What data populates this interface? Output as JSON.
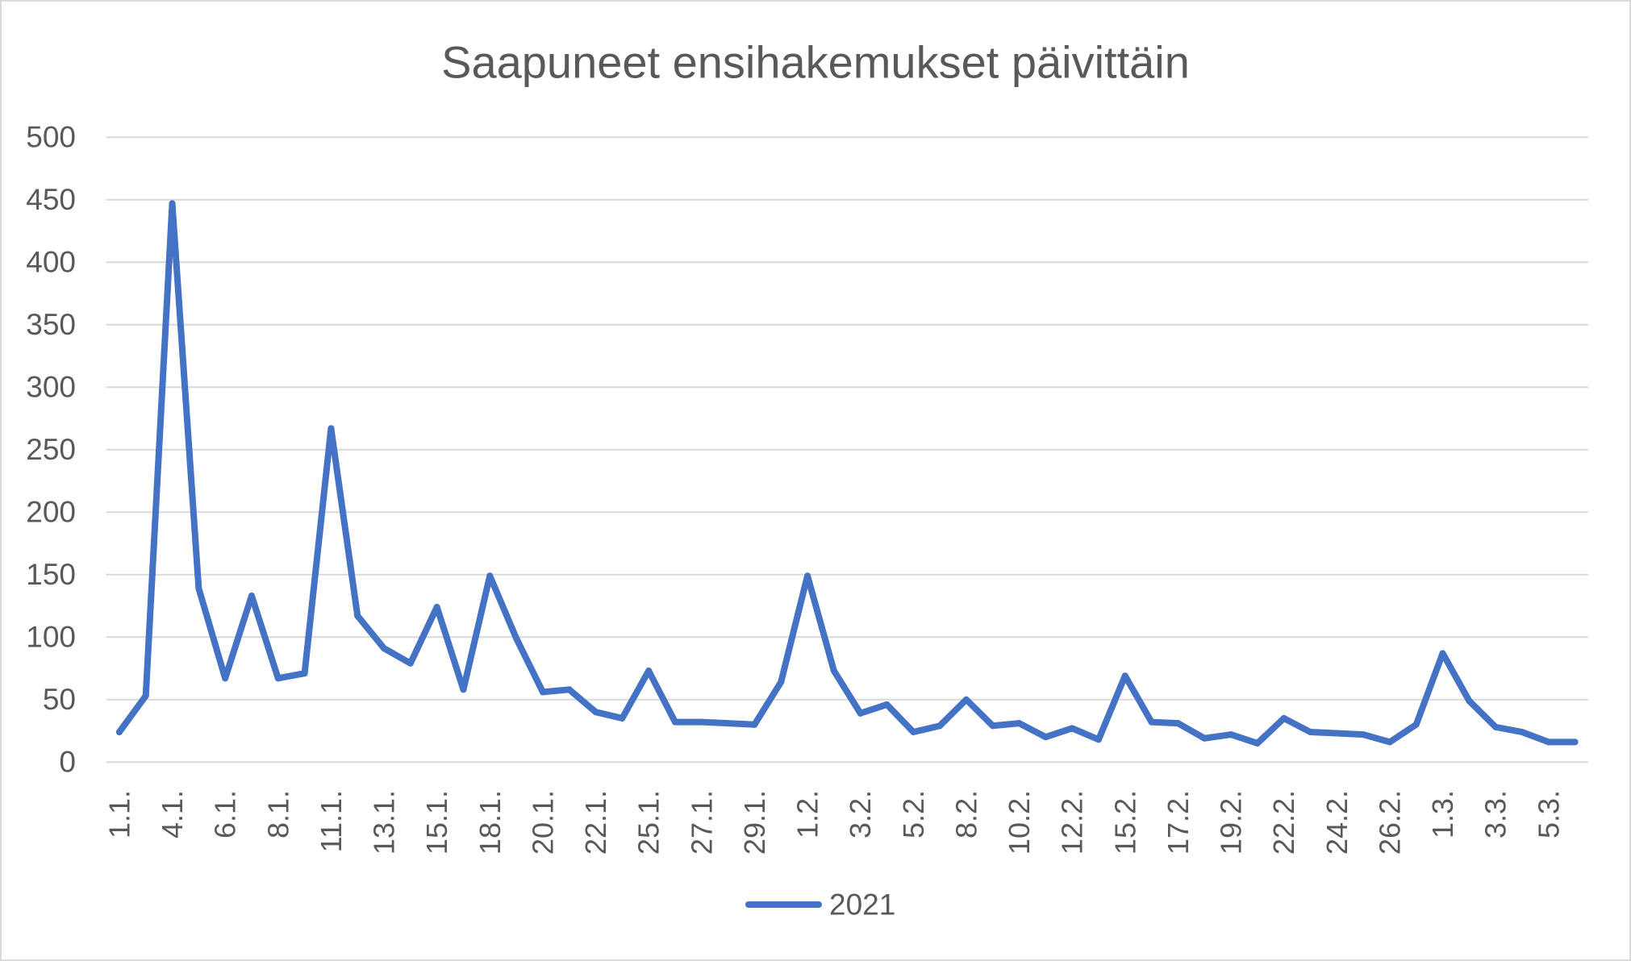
{
  "colors": {
    "text": "#595959",
    "grid": "#d9d9d9",
    "background": "#ffffff"
  },
  "chart_data": {
    "type": "line",
    "title": "Saapuneet ensihakemukset päivittäin",
    "categories": [
      "1.1.",
      "",
      "4.1.",
      "",
      "6.1.",
      "",
      "8.1.",
      "",
      "11.1.",
      "",
      "13.1.",
      "",
      "15.1.",
      "",
      "18.1.",
      "",
      "20.1.",
      "",
      "22.1.",
      "",
      "25.1.",
      "",
      "27.1.",
      "",
      "29.1.",
      "",
      "1.2.",
      "",
      "3.2.",
      "",
      "5.2.",
      "",
      "8.2.",
      "",
      "10.2.",
      "",
      "12.2.",
      "",
      "15.2.",
      "",
      "17.2.",
      "",
      "19.2.",
      "",
      "22.2.",
      "",
      "24.2.",
      "",
      "26.2.",
      "",
      "1.3.",
      "",
      "3.3.",
      "",
      "5.3.",
      ""
    ],
    "series": [
      {
        "name": "2021",
        "color": "#4472C4",
        "values": [
          24,
          53,
          447,
          139,
          67,
          133,
          67,
          71,
          267,
          117,
          91,
          79,
          124,
          58,
          149,
          99,
          56,
          58,
          40,
          35,
          73,
          32,
          32,
          31,
          30,
          64,
          149,
          73,
          39,
          46,
          24,
          29,
          50,
          29,
          31,
          20,
          27,
          18,
          69,
          32,
          31,
          19,
          22,
          15,
          35,
          24,
          23,
          22,
          16,
          30,
          87,
          49,
          28,
          24,
          16,
          16
        ]
      }
    ],
    "ylim": [
      0,
      500
    ],
    "y_ticks": [
      0,
      50,
      100,
      150,
      200,
      250,
      300,
      350,
      400,
      450,
      500
    ],
    "grid": "horizontal",
    "legend": "bottom-center"
  }
}
